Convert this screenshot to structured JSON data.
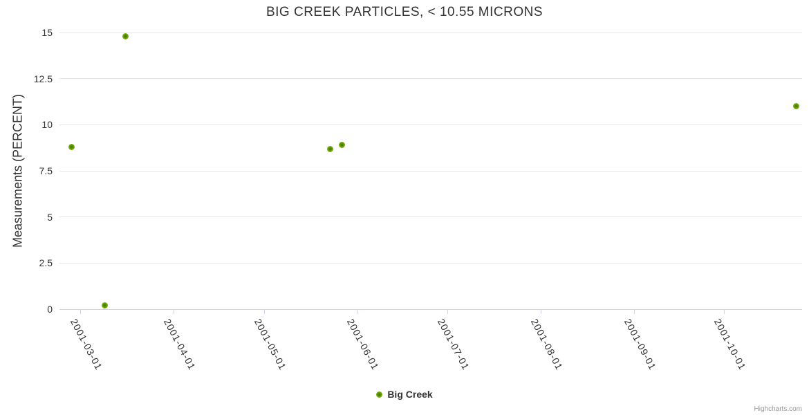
{
  "title": "BIG CREEK PARTICLES, < 10.55 MICRONS",
  "credits": "Highcharts.com",
  "colors": {
    "series_green": "#6fa807",
    "marker_center": "#3f6c00",
    "marker_edge": "#8fc32a",
    "grid": "#e6e6e6",
    "axis_line": "#ccd6eb",
    "text": "#333333",
    "credits_text": "#999999",
    "background": "#ffffff"
  },
  "chart_data": {
    "type": "scatter",
    "title": "BIG CREEK PARTICLES, < 10.55 MICRONS",
    "xlabel": "",
    "ylabel": "Measurements (PERCENT)",
    "x_type": "datetime",
    "x_range": [
      "2001-02-22",
      "2001-10-27"
    ],
    "y_range": [
      0,
      15
    ],
    "grid": true,
    "legend_position": "bottom-center",
    "x_ticks": [
      "2001-03-01",
      "2001-04-01",
      "2001-05-01",
      "2001-06-01",
      "2001-07-01",
      "2001-08-01",
      "2001-09-01",
      "2001-10-01"
    ],
    "y_ticks": [
      0,
      2.5,
      5,
      7.5,
      10,
      12.5,
      15
    ],
    "y_tick_labels": [
      "0",
      "2.5",
      "5",
      "7.5",
      "10",
      "12.5",
      "15"
    ],
    "series": [
      {
        "name": "Big Creek",
        "color": "#6fa807",
        "points": [
          {
            "date": "2001-02-26",
            "value": 8.8
          },
          {
            "date": "2001-03-09",
            "value": 0.2
          },
          {
            "date": "2001-03-16",
            "value": 14.8
          },
          {
            "date": "2001-05-23",
            "value": 8.7
          },
          {
            "date": "2001-05-27",
            "value": 8.9
          },
          {
            "date": "2001-10-25",
            "value": 11.0
          }
        ]
      }
    ]
  }
}
